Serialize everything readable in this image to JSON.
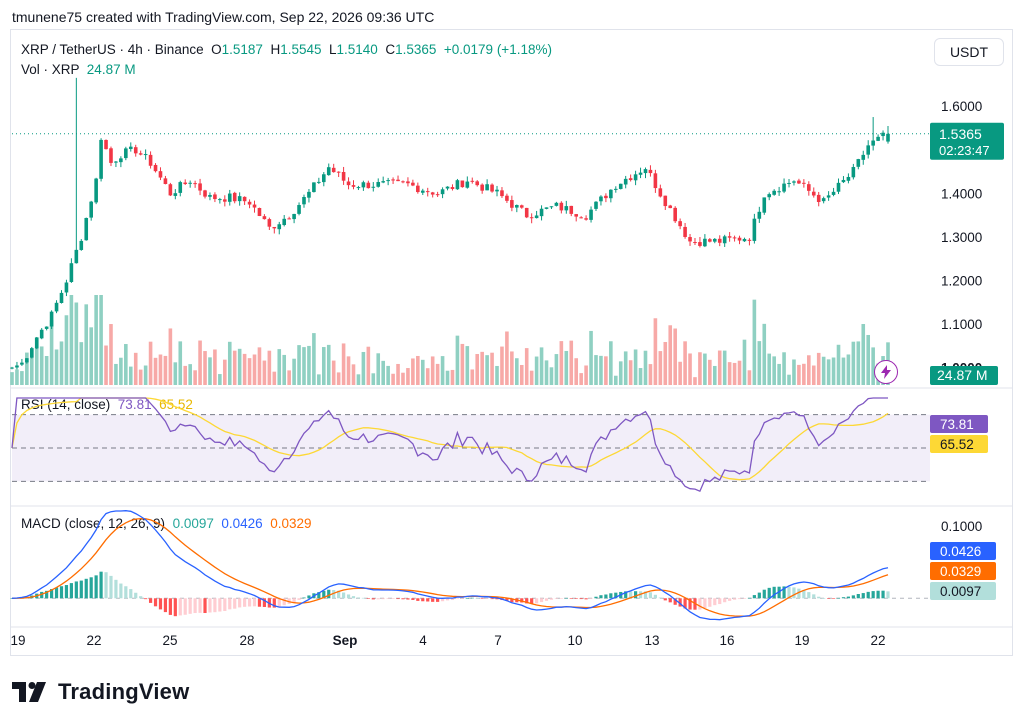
{
  "credit": "tmunene75 created with TradingView.com, Sep 22, 2026 09:36 UTC",
  "currency_button": "USDT",
  "brand": "TradingView",
  "legend": {
    "symbol": "XRP / TetherUS · 4h · Binance",
    "o_label": "O",
    "o_value": "1.5187",
    "h_label": "H",
    "h_value": "1.5545",
    "l_label": "L",
    "l_value": "1.5140",
    "c_label": "C",
    "c_value": "1.5365",
    "change": "+0.0179 (+1.18%)",
    "vol_label": "Vol · XRP",
    "vol_value": "24.87 M",
    "rsi_label": "RSI (14, close)",
    "rsi_value": "73.81",
    "rsi_ma_value": "65.52",
    "macd_label": "MACD (close, 12, 26, 9)",
    "macd_hist_value": "0.0097",
    "macd_line_value": "0.0426",
    "macd_signal_value": "0.0329"
  },
  "colors": {
    "up": "#089981",
    "down": "#f23645",
    "rsi": "#7e57c2",
    "rsi_ma": "#fdd835",
    "macd": "#2962ff",
    "signal": "#ff6d00",
    "grid": "#f0f3fa"
  },
  "chart_data": [
    {
      "type": "candlestick",
      "title": "XRP / TetherUS · 4h · Binance",
      "ylim": [
        0.96,
        1.66
      ],
      "y_ticks": [
        "1.6000",
        "1.4000",
        "1.3000",
        "1.2000",
        "1.1000",
        "1.0000"
      ],
      "x_ticks": [
        "19",
        "22",
        "25",
        "28",
        "Sep",
        "4",
        "7",
        "10",
        "13",
        "16",
        "19",
        "22"
      ],
      "last_price": "1.5365",
      "countdown": "02:23:47",
      "anchor_closes": [
        [
          "Aug 19",
          1.0
        ],
        [
          "Aug 19 12h",
          1.01
        ],
        [
          "Aug 20",
          1.07
        ],
        [
          "Aug 20 12h",
          1.12
        ],
        [
          "Aug 21",
          1.2
        ],
        [
          "Aug 21 12h",
          1.3
        ],
        [
          "Aug 22",
          1.43
        ],
        [
          "Aug 22 8h",
          1.53
        ],
        [
          "Aug 22 16h",
          1.47
        ],
        [
          "Aug 23",
          1.49
        ],
        [
          "Aug 24",
          1.5
        ],
        [
          "Aug 25",
          1.47
        ],
        [
          "Aug 26",
          1.4
        ],
        [
          "Aug 27",
          1.43
        ],
        [
          "Aug 28",
          1.39
        ],
        [
          "Aug 29",
          1.39
        ],
        [
          "Aug 30",
          1.38
        ],
        [
          "Aug 31",
          1.32
        ],
        [
          "Sep 1",
          1.35
        ],
        [
          "Sep 2",
          1.4
        ],
        [
          "Sep 3",
          1.46
        ],
        [
          "Sep 4",
          1.42
        ],
        [
          "Sep 5",
          1.42
        ],
        [
          "Sep 7",
          1.42
        ],
        [
          "Sep 8",
          1.4
        ],
        [
          "Sep 9",
          1.43
        ],
        [
          "Sep 10",
          1.4
        ],
        [
          "Sep 11",
          1.35
        ],
        [
          "Sep 12",
          1.37
        ],
        [
          "Sep 13",
          1.35
        ],
        [
          "Sep 14",
          1.42
        ],
        [
          "Sep 15",
          1.46
        ],
        [
          "Sep 15 12h",
          1.4
        ],
        [
          "Sep 16",
          1.29
        ],
        [
          "Sep 17",
          1.29
        ],
        [
          "Sep 18",
          1.3
        ],
        [
          "Sep 18 12h",
          1.4
        ],
        [
          "Sep 19",
          1.43
        ],
        [
          "Sep 20",
          1.38
        ],
        [
          "Sep 21",
          1.45
        ],
        [
          "Sep 21 12h",
          1.51
        ],
        [
          "Sep 22",
          1.5365
        ]
      ]
    },
    {
      "type": "bar",
      "title": "Vol · XRP",
      "last_value": "24.87 M",
      "note": "volume bars colored by candle direction"
    },
    {
      "type": "line",
      "title": "RSI (14, close)",
      "ylim": [
        20,
        80
      ],
      "y_ticks": [
        "50.00"
      ],
      "bands": [
        30,
        50,
        70
      ],
      "series": [
        {
          "name": "RSI",
          "last": "73.81"
        },
        {
          "name": "RSI MA",
          "last": "65.52"
        }
      ]
    },
    {
      "type": "line",
      "title": "MACD (close, 12, 26, 9)",
      "ylim": [
        -0.03,
        0.115
      ],
      "y_ticks": [
        "0.1000",
        "0.0000"
      ],
      "series": [
        {
          "name": "MACD",
          "last": "0.0426"
        },
        {
          "name": "Signal",
          "last": "0.0329"
        },
        {
          "name": "Histogram",
          "last": "0.0097"
        }
      ]
    }
  ]
}
